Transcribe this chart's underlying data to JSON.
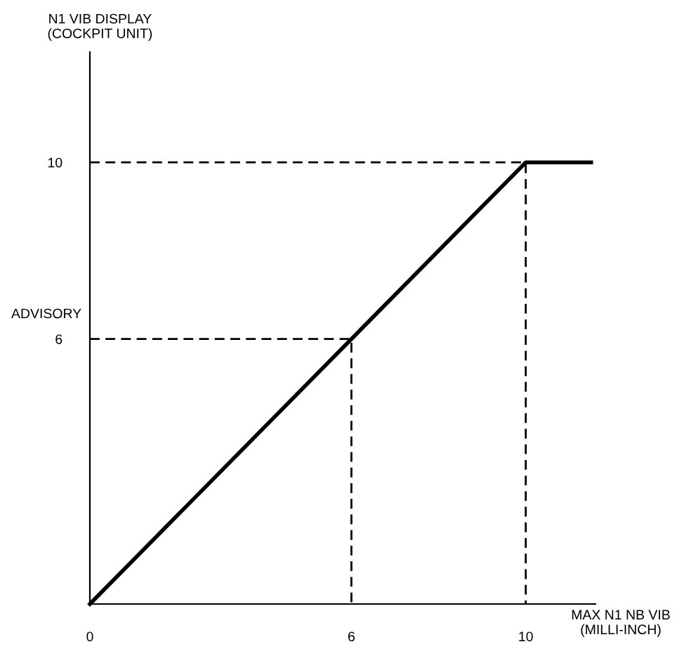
{
  "chart_data": {
    "type": "line",
    "xlabel": "MAX N1 NB VIB\n(MILLI-INCH)",
    "ylabel": "N1 VIB DISPLAY\n(COCKPIT UNIT)",
    "xlim": [
      0,
      11.6
    ],
    "ylim": [
      0,
      12.5
    ],
    "xticks": [
      0,
      6,
      10
    ],
    "yticks": [
      6,
      10
    ],
    "grid": false,
    "legend": false,
    "marker": "none",
    "annotations": [
      "ADVISORY"
    ],
    "series": [
      {
        "color": "#000000",
        "x": [
          0,
          10,
          11.5
        ],
        "values": [
          0,
          10,
          10
        ],
        "line_style": "solid"
      },
      {
        "color": "#000000",
        "x": [
          0,
          6,
          6
        ],
        "values": [
          6,
          6,
          0
        ],
        "line_style": "dashed"
      },
      {
        "color": "#000000",
        "x": [
          0,
          10,
          10
        ],
        "values": [
          10,
          10,
          0
        ],
        "line_style": "dashed"
      }
    ]
  }
}
